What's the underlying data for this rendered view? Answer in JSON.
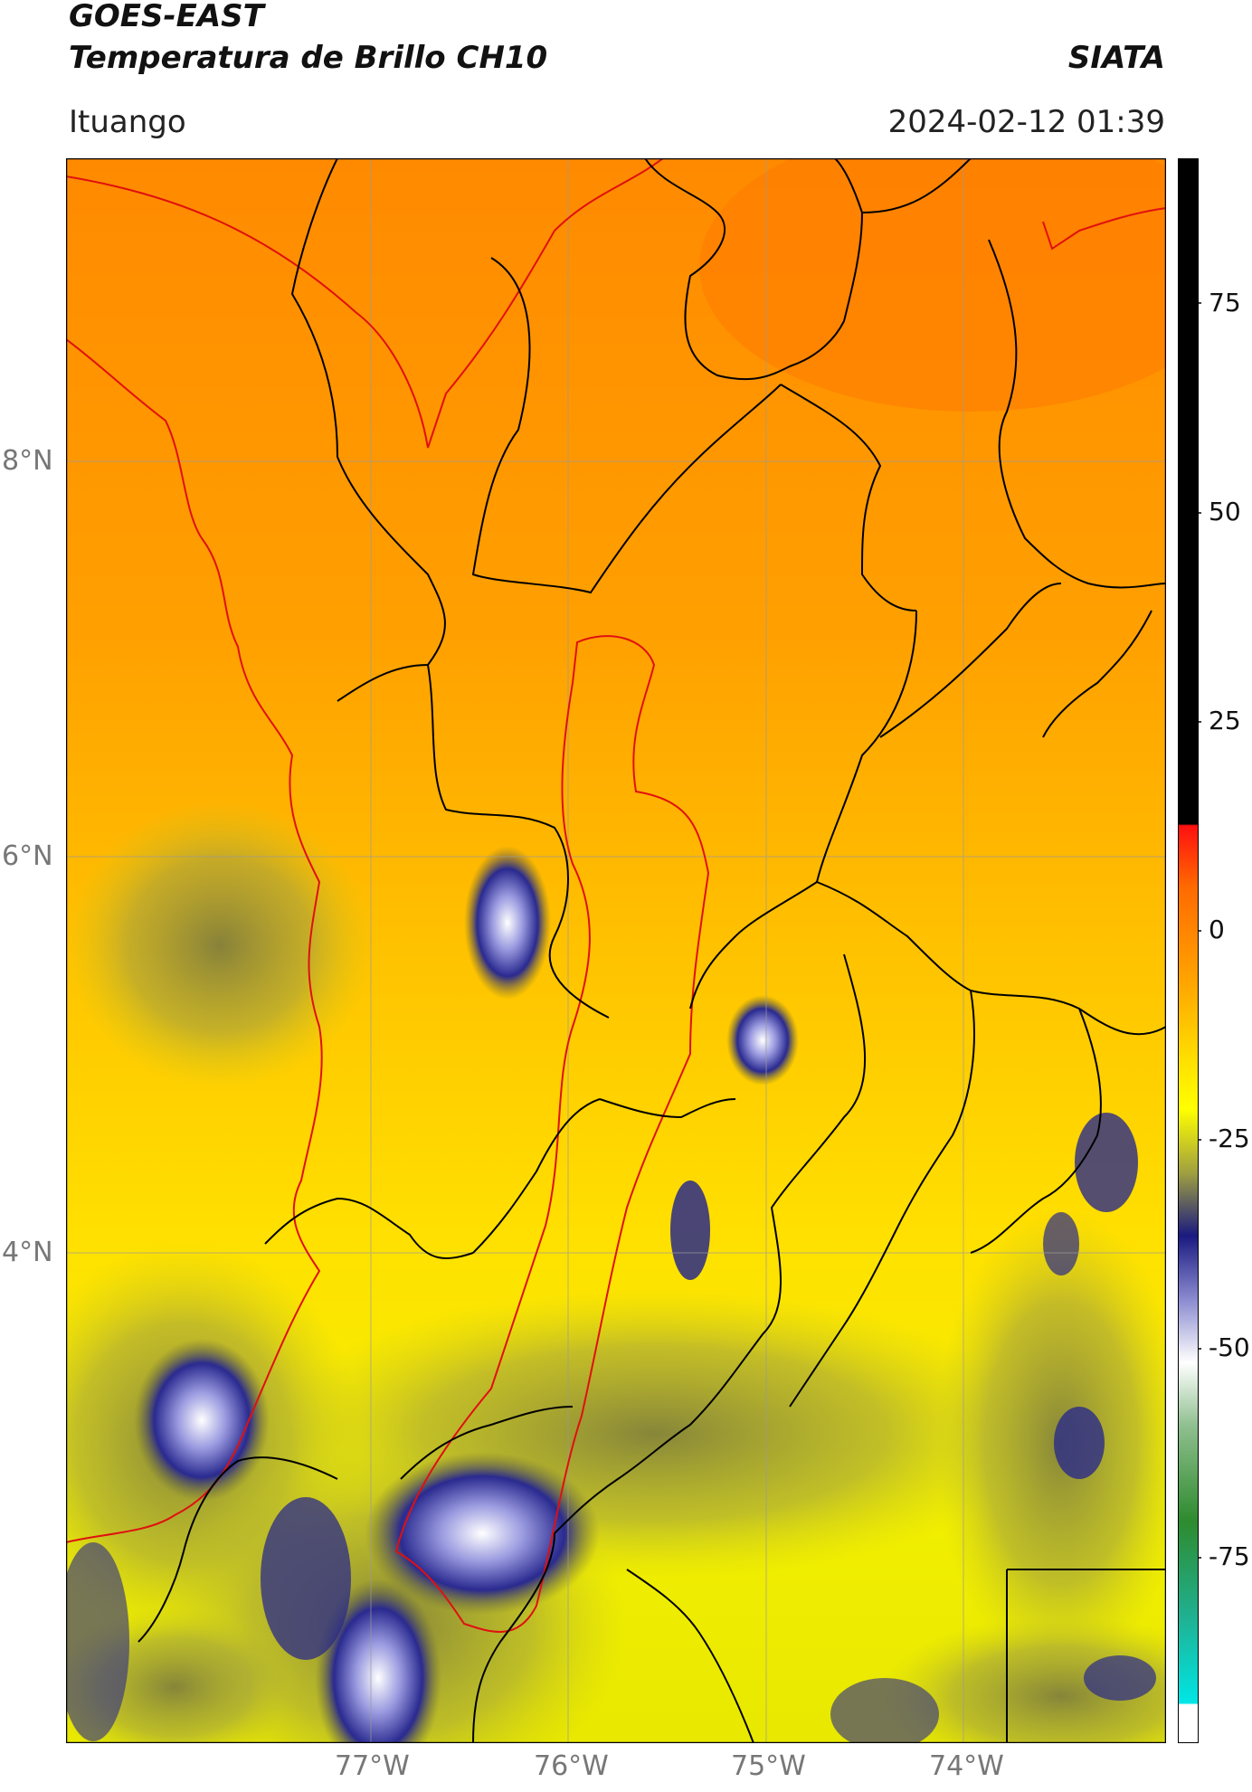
{
  "header": {
    "title_line1": "GOES-EAST",
    "title_line2": "Temperatura de Brillo CH10",
    "source": "SIATA",
    "location": "Ituango",
    "datetime": "2024-02-12 01:39"
  },
  "map": {
    "lat_labels": [
      "8°N",
      "6°N",
      "4°N"
    ],
    "lon_labels": [
      "77°W",
      "76°W",
      "75°W",
      "74°W"
    ],
    "region_outline_color": "#e01010",
    "boundary_color": "#000000"
  },
  "colorbar": {
    "ticks": [
      "75",
      "50",
      "25",
      "0",
      "-25",
      "-50",
      "-75"
    ],
    "colors": {
      "warm_top": "#000000",
      "red": "#ff1010",
      "orange": "#ff8c00",
      "yellow": "#ffff00",
      "olive": "#8b8b3a",
      "navy": "#1a1a80",
      "white": "#ffffff",
      "green": "#2e8b2e",
      "cyan": "#00e6e6"
    }
  }
}
